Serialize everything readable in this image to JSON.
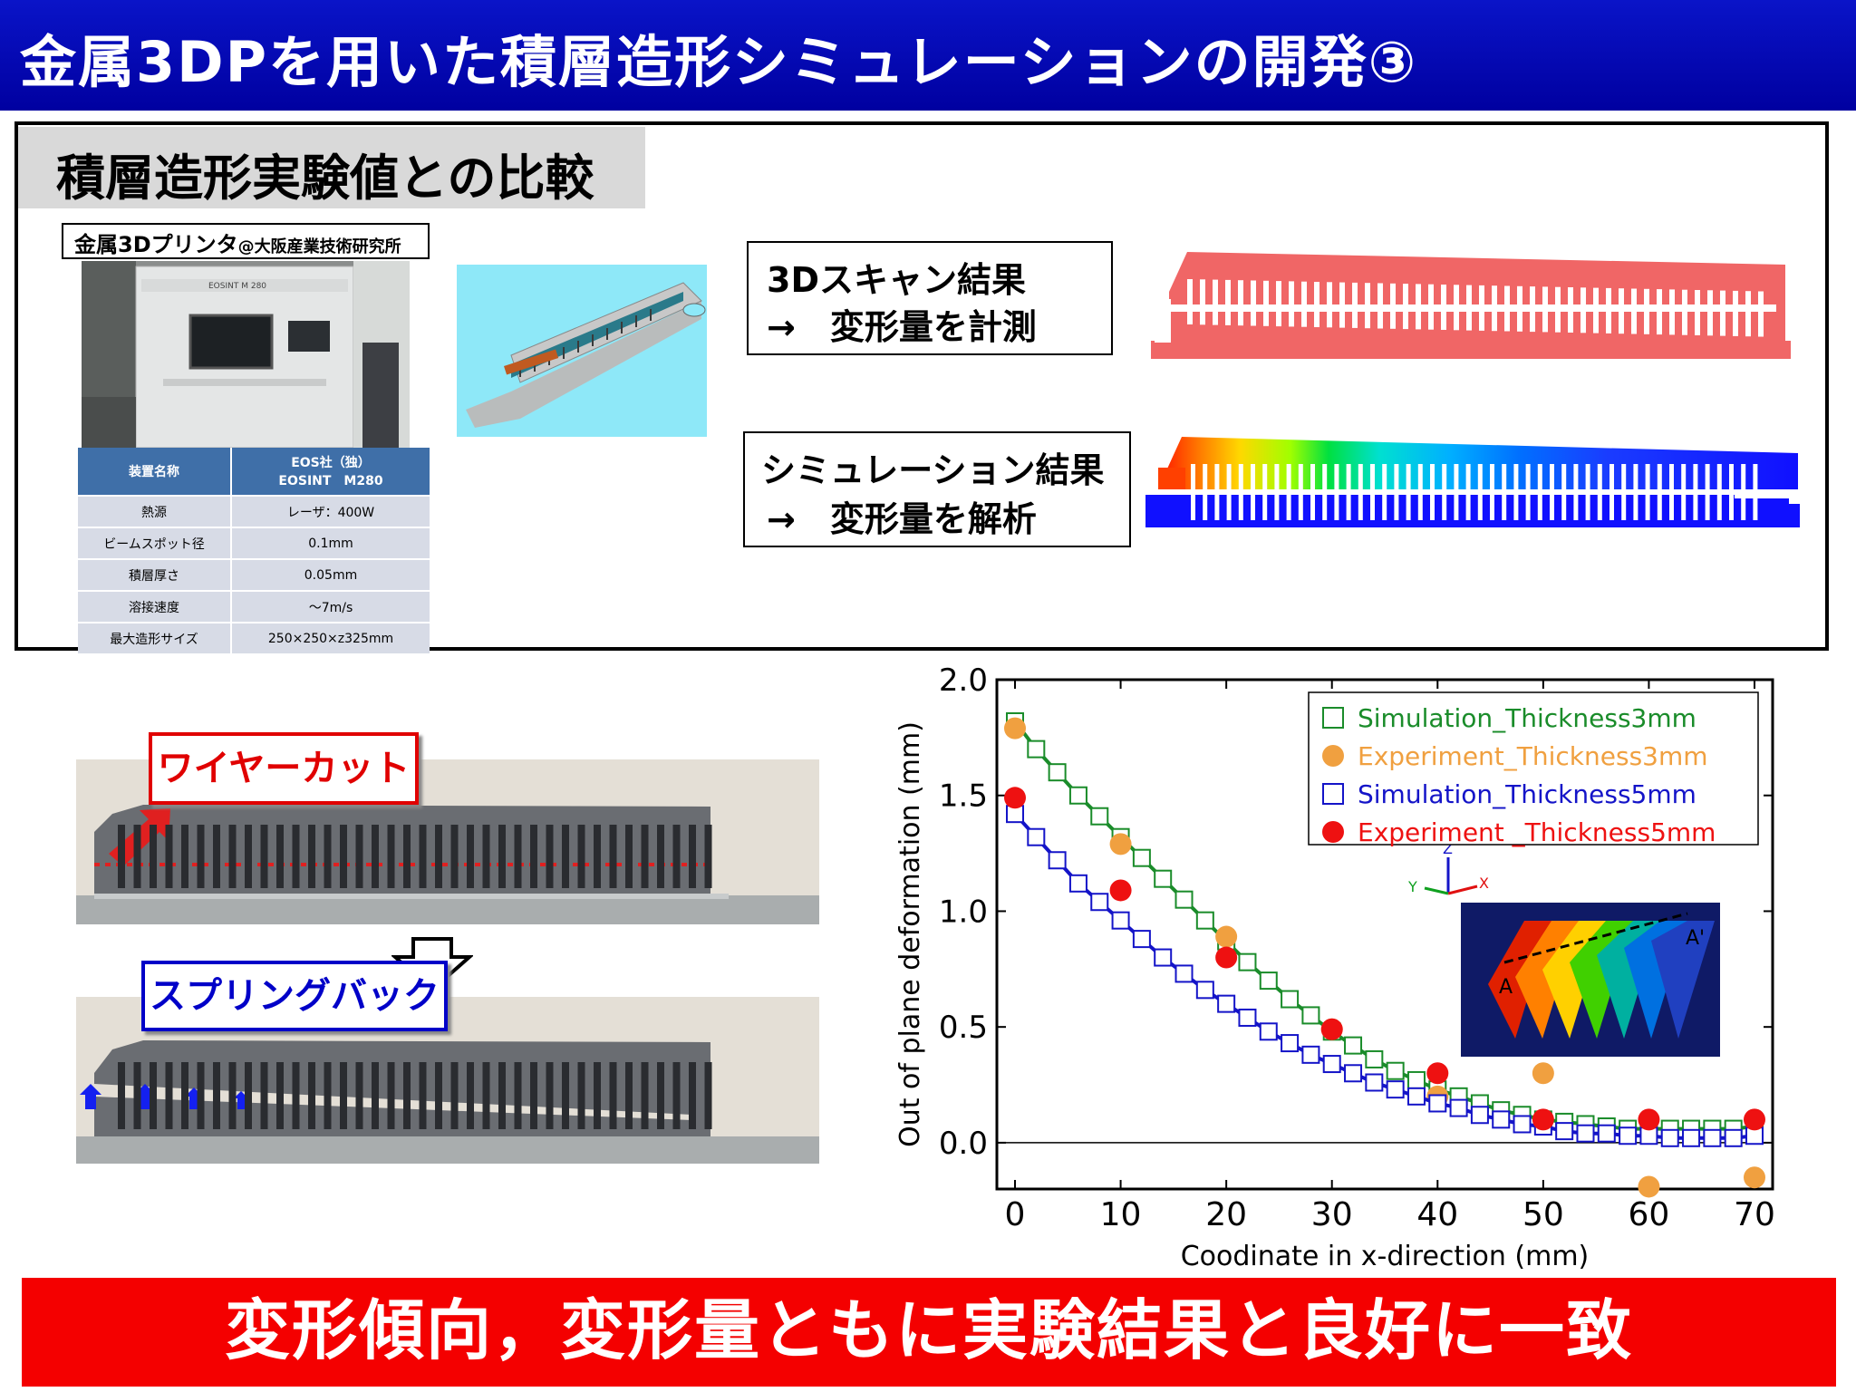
{
  "header": {
    "title": "金属3DPを用いた積層造形シミュレーションの開発③"
  },
  "top_panel": {
    "heading": "積層造形実験値との比較",
    "printer_label": "金属3Dプリンタ",
    "printer_label_suffix": "@大阪産業技術研究所",
    "machine_brand": "EOSINT M 280",
    "spec_table": {
      "header": [
        "装置名称",
        "EOS社（独）",
        "EOSINT　M280"
      ],
      "rows": [
        [
          "熱源",
          "レーザ：400W"
        ],
        [
          "ビームスポット径",
          "0.1mm"
        ],
        [
          "積層厚さ",
          "0.05mm"
        ],
        [
          "溶接速度",
          "～7m/s"
        ],
        [
          "最大造形サイズ",
          "250×250×z325mm"
        ]
      ]
    },
    "scan_result": {
      "line1": "3Dスキャン結果",
      "line2": "→　変形量を計測"
    },
    "sim_result": {
      "line1": "シミュレーション結果",
      "line2": "→　変形量を解析"
    }
  },
  "photos": {
    "wirecut_label": "ワイヤーカット",
    "springback_label": "スプリングバック"
  },
  "chart_data": {
    "type": "scatter",
    "title": "",
    "xlabel": "Coodinate in x-direction (mm)",
    "ylabel": "Out of plane deformation (mm)",
    "xlim": [
      0,
      70
    ],
    "ylim": [
      -0.2,
      2.0
    ],
    "xticks": [
      0,
      10,
      20,
      30,
      40,
      50,
      60,
      70
    ],
    "yticks": [
      0.0,
      0.5,
      1.0,
      1.5,
      2.0
    ],
    "ytick_labels": [
      "0.0",
      "0.5",
      "1.0",
      "1.5",
      "2.0"
    ],
    "legend_position": "top-right",
    "series": [
      {
        "name": "Simulation_Thickness3mm",
        "color": "#1a8c2a",
        "marker": "open-square",
        "x": [
          0,
          2,
          4,
          6,
          8,
          10,
          12,
          14,
          16,
          18,
          20,
          22,
          24,
          26,
          28,
          30,
          32,
          34,
          36,
          38,
          40,
          42,
          44,
          46,
          48,
          50,
          52,
          54,
          56,
          58,
          60,
          62,
          64,
          66,
          68,
          70
        ],
        "y": [
          1.82,
          1.7,
          1.6,
          1.5,
          1.41,
          1.32,
          1.23,
          1.14,
          1.05,
          0.96,
          0.87,
          0.78,
          0.7,
          0.62,
          0.55,
          0.48,
          0.42,
          0.36,
          0.31,
          0.27,
          0.23,
          0.2,
          0.17,
          0.14,
          0.12,
          0.1,
          0.09,
          0.08,
          0.07,
          0.06,
          0.06,
          0.06,
          0.06,
          0.06,
          0.06,
          0.07
        ]
      },
      {
        "name": "Experiment_Thickness3mm",
        "color": "#f0a040",
        "marker": "filled-circle",
        "x": [
          0,
          10,
          20,
          30,
          40,
          50,
          60,
          70
        ],
        "y": [
          1.79,
          1.29,
          0.89,
          0.49,
          0.2,
          0.3,
          -0.19,
          -0.15
        ]
      },
      {
        "name": "Simulation_Thickness5mm",
        "color": "#1414c8",
        "marker": "open-square",
        "x": [
          0,
          2,
          4,
          6,
          8,
          10,
          12,
          14,
          16,
          18,
          20,
          22,
          24,
          26,
          28,
          30,
          32,
          34,
          36,
          38,
          40,
          42,
          44,
          46,
          48,
          50,
          52,
          54,
          56,
          58,
          60,
          62,
          64,
          66,
          68,
          70
        ],
        "y": [
          1.42,
          1.32,
          1.22,
          1.12,
          1.04,
          0.96,
          0.88,
          0.8,
          0.73,
          0.66,
          0.6,
          0.54,
          0.48,
          0.43,
          0.38,
          0.34,
          0.3,
          0.26,
          0.23,
          0.2,
          0.17,
          0.15,
          0.12,
          0.1,
          0.08,
          0.07,
          0.05,
          0.04,
          0.04,
          0.03,
          0.03,
          0.02,
          0.02,
          0.02,
          0.02,
          0.03
        ]
      },
      {
        "name": "Experiment _Thickness5mm",
        "color": "#ee1111",
        "marker": "filled-circle",
        "x": [
          0,
          10,
          20,
          30,
          40,
          50,
          60,
          70
        ],
        "y": [
          1.49,
          1.09,
          0.8,
          0.49,
          0.3,
          0.1,
          0.1,
          0.1
        ]
      }
    ]
  },
  "inset": {
    "axis_z": "Z",
    "axis_x": "X",
    "axis_y": "Y",
    "point_a": "A",
    "point_a_prime": "A'"
  },
  "conclusion": {
    "text": "変形傾向，変形量ともに実験結果と良好に一致"
  }
}
